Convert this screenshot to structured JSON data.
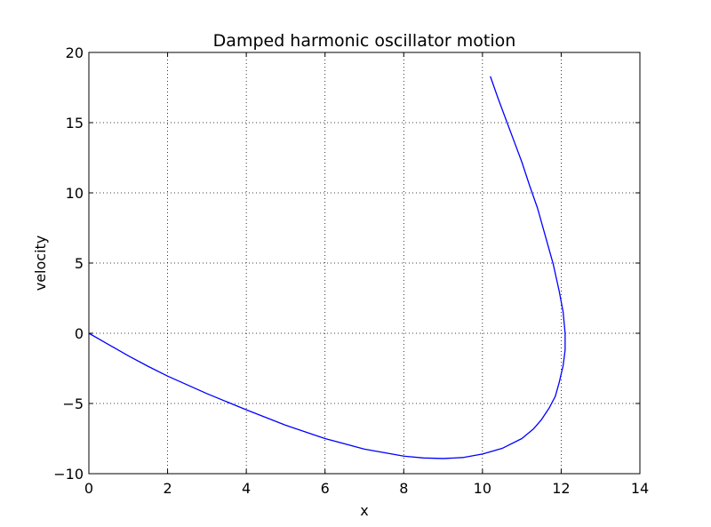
{
  "chart_data": {
    "type": "line",
    "title": "Damped harmonic oscillator motion",
    "xlabel": "x",
    "ylabel": "velocity",
    "xlim": [
      0,
      14
    ],
    "ylim": [
      -10,
      20
    ],
    "x_ticks": [
      0,
      2,
      4,
      6,
      8,
      10,
      12,
      14
    ],
    "y_ticks": [
      -10,
      -5,
      0,
      5,
      10,
      15,
      20
    ],
    "x_tick_labels": [
      "0",
      "2",
      "4",
      "6",
      "8",
      "10",
      "12",
      "14"
    ],
    "y_tick_labels": [
      "−10",
      "−5",
      "0",
      "5",
      "10",
      "15",
      "20"
    ],
    "grid": true,
    "legend": false,
    "series": [
      {
        "color": "#0000ff",
        "x": [
          0,
          0.5,
          1.0,
          1.5,
          2.0,
          3.0,
          4.0,
          5.0,
          6.0,
          7.0,
          8.0,
          8.5,
          9.0,
          9.5,
          10.0,
          10.5,
          11.0,
          11.3,
          11.5,
          11.7,
          11.85,
          11.95,
          12.05,
          12.1,
          12.1,
          12.05,
          11.95,
          11.8,
          11.6,
          11.4,
          11.2,
          11.0,
          10.8,
          10.6,
          10.4,
          10.2
        ],
        "y": [
          0,
          -0.8,
          -1.6,
          -2.35,
          -3.05,
          -4.3,
          -5.45,
          -6.55,
          -7.5,
          -8.25,
          -8.75,
          -8.88,
          -8.92,
          -8.85,
          -8.6,
          -8.2,
          -7.5,
          -6.8,
          -6.15,
          -5.3,
          -4.5,
          -3.5,
          -2.3,
          -1.2,
          0.0,
          1.5,
          3.0,
          4.9,
          6.9,
          8.9,
          10.5,
          12.2,
          13.7,
          15.2,
          16.7,
          18.3
        ]
      }
    ]
  }
}
